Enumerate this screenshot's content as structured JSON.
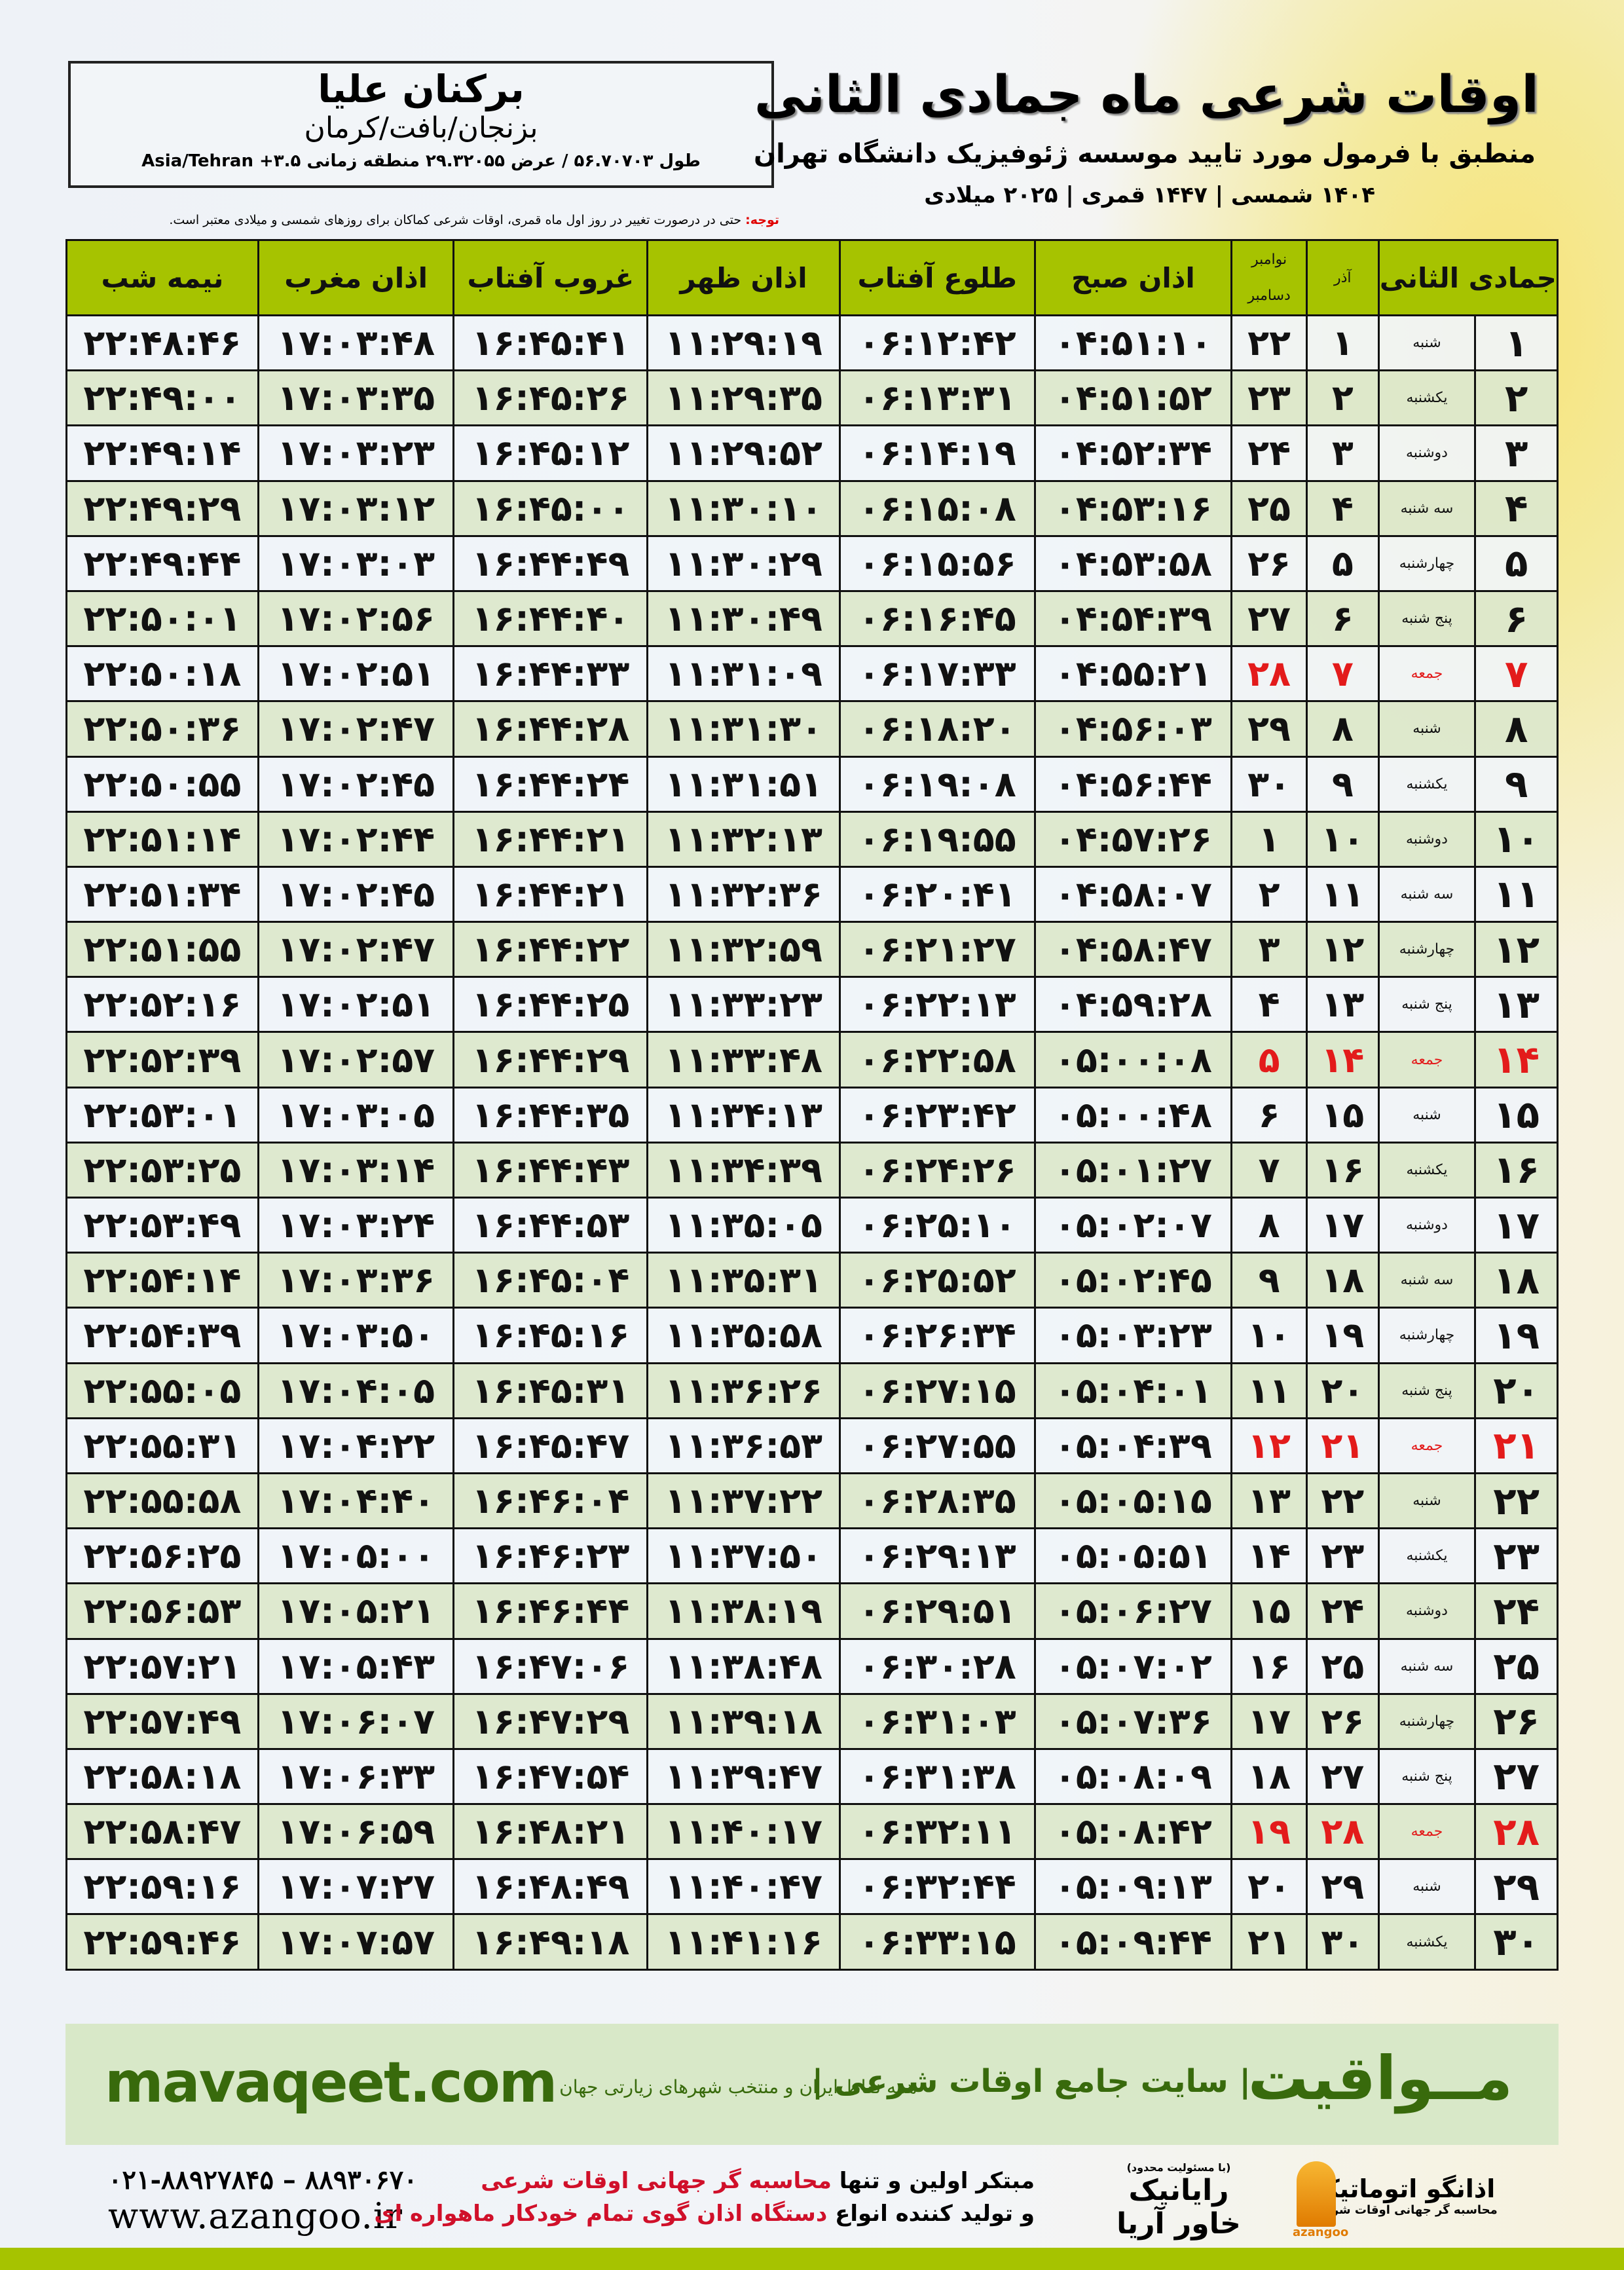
{
  "header": {
    "city": "برکنان علیا",
    "region": "بزنجان/بافت/کرمان",
    "coords": "طول ۵۶.۷۰۷۰۳ / عرض ۲۹.۳۲۰۵۵ منطقه زمانی ۳.۵+ Asia/Tehran",
    "title": "اوقات شرعی ماه جمادی الثانی",
    "subtitle": "منطبق با فرمول مورد تایید موسسه ژئوفیزیک دانشگاه تهران",
    "dates": "۱۴۰۴ شمسی | ۱۴۴۷ قمری | ۲۰۲۵ میلادی",
    "note_label": "توجه:",
    "note": " حتی در درصورت تغییر در روز اول ماه قمری، اوقات شرعی کماکان برای روزهای شمسی و میلادی معتبر است."
  },
  "table": {
    "columns": [
      "جمادی الثانی",
      "آذر",
      "نوامبر",
      "دسامبر",
      "اذان صبح",
      "طلوع آفتاب",
      "اذان ظهر",
      "غروب آفتاب",
      "اذان مغرب",
      "نیمه شب"
    ],
    "holiday_color": "#e31b1b",
    "rows": [
      [
        "۱",
        "شنبه",
        "۱",
        "۲۲",
        "۰۴:۵۱:۱۰",
        "۰۶:۱۲:۴۲",
        "۱۱:۲۹:۱۹",
        "۱۶:۴۵:۴۱",
        "۱۷:۰۳:۴۸",
        "۲۲:۴۸:۴۶"
      ],
      [
        "۲",
        "یکشنبه",
        "۲",
        "۲۳",
        "۰۴:۵۱:۵۲",
        "۰۶:۱۳:۳۱",
        "۱۱:۲۹:۳۵",
        "۱۶:۴۵:۲۶",
        "۱۷:۰۳:۳۵",
        "۲۲:۴۹:۰۰"
      ],
      [
        "۳",
        "دوشنبه",
        "۳",
        "۲۴",
        "۰۴:۵۲:۳۴",
        "۰۶:۱۴:۱۹",
        "۱۱:۲۹:۵۲",
        "۱۶:۴۵:۱۲",
        "۱۷:۰۳:۲۳",
        "۲۲:۴۹:۱۴"
      ],
      [
        "۴",
        "سه شنبه",
        "۴",
        "۲۵",
        "۰۴:۵۳:۱۶",
        "۰۶:۱۵:۰۸",
        "۱۱:۳۰:۱۰",
        "۱۶:۴۵:۰۰",
        "۱۷:۰۳:۱۲",
        "۲۲:۴۹:۲۹"
      ],
      [
        "۵",
        "چهارشنبه",
        "۵",
        "۲۶",
        "۰۴:۵۳:۵۸",
        "۰۶:۱۵:۵۶",
        "۱۱:۳۰:۲۹",
        "۱۶:۴۴:۴۹",
        "۱۷:۰۳:۰۳",
        "۲۲:۴۹:۴۴"
      ],
      [
        "۶",
        "پنج شنبه",
        "۶",
        "۲۷",
        "۰۴:۵۴:۳۹",
        "۰۶:۱۶:۴۵",
        "۱۱:۳۰:۴۹",
        "۱۶:۴۴:۴۰",
        "۱۷:۰۲:۵۶",
        "۲۲:۵۰:۰۱"
      ],
      [
        "۷",
        "جمعه",
        "۷",
        "۲۸",
        "۰۴:۵۵:۲۱",
        "۰۶:۱۷:۳۳",
        "۱۱:۳۱:۰۹",
        "۱۶:۴۴:۳۳",
        "۱۷:۰۲:۵۱",
        "۲۲:۵۰:۱۸"
      ],
      [
        "۸",
        "شنبه",
        "۸",
        "۲۹",
        "۰۴:۵۶:۰۳",
        "۰۶:۱۸:۲۰",
        "۱۱:۳۱:۳۰",
        "۱۶:۴۴:۲۸",
        "۱۷:۰۲:۴۷",
        "۲۲:۵۰:۳۶"
      ],
      [
        "۹",
        "یکشنبه",
        "۹",
        "۳۰",
        "۰۴:۵۶:۴۴",
        "۰۶:۱۹:۰۸",
        "۱۱:۳۱:۵۱",
        "۱۶:۴۴:۲۴",
        "۱۷:۰۲:۴۵",
        "۲۲:۵۰:۵۵"
      ],
      [
        "۱۰",
        "دوشنبه",
        "۱۰",
        "۱",
        "۰۴:۵۷:۲۶",
        "۰۶:۱۹:۵۵",
        "۱۱:۳۲:۱۳",
        "۱۶:۴۴:۲۱",
        "۱۷:۰۲:۴۴",
        "۲۲:۵۱:۱۴"
      ],
      [
        "۱۱",
        "سه شنبه",
        "۱۱",
        "۲",
        "۰۴:۵۸:۰۷",
        "۰۶:۲۰:۴۱",
        "۱۱:۳۲:۳۶",
        "۱۶:۴۴:۲۱",
        "۱۷:۰۲:۴۵",
        "۲۲:۵۱:۳۴"
      ],
      [
        "۱۲",
        "چهارشنبه",
        "۱۲",
        "۳",
        "۰۴:۵۸:۴۷",
        "۰۶:۲۱:۲۷",
        "۱۱:۳۲:۵۹",
        "۱۶:۴۴:۲۲",
        "۱۷:۰۲:۴۷",
        "۲۲:۵۱:۵۵"
      ],
      [
        "۱۳",
        "پنج شنبه",
        "۱۳",
        "۴",
        "۰۴:۵۹:۲۸",
        "۰۶:۲۲:۱۳",
        "۱۱:۳۳:۲۳",
        "۱۶:۴۴:۲۵",
        "۱۷:۰۲:۵۱",
        "۲۲:۵۲:۱۶"
      ],
      [
        "۱۴",
        "جمعه",
        "۱۴",
        "۵",
        "۰۵:۰۰:۰۸",
        "۰۶:۲۲:۵۸",
        "۱۱:۳۳:۴۸",
        "۱۶:۴۴:۲۹",
        "۱۷:۰۲:۵۷",
        "۲۲:۵۲:۳۹"
      ],
      [
        "۱۵",
        "شنبه",
        "۱۵",
        "۶",
        "۰۵:۰۰:۴۸",
        "۰۶:۲۳:۴۲",
        "۱۱:۳۴:۱۳",
        "۱۶:۴۴:۳۵",
        "۱۷:۰۳:۰۵",
        "۲۲:۵۳:۰۱"
      ],
      [
        "۱۶",
        "یکشنبه",
        "۱۶",
        "۷",
        "۰۵:۰۱:۲۷",
        "۰۶:۲۴:۲۶",
        "۱۱:۳۴:۳۹",
        "۱۶:۴۴:۴۳",
        "۱۷:۰۳:۱۴",
        "۲۲:۵۳:۲۵"
      ],
      [
        "۱۷",
        "دوشنبه",
        "۱۷",
        "۸",
        "۰۵:۰۲:۰۷",
        "۰۶:۲۵:۱۰",
        "۱۱:۳۵:۰۵",
        "۱۶:۴۴:۵۳",
        "۱۷:۰۳:۲۴",
        "۲۲:۵۳:۴۹"
      ],
      [
        "۱۸",
        "سه شنبه",
        "۱۸",
        "۹",
        "۰۵:۰۲:۴۵",
        "۰۶:۲۵:۵۲",
        "۱۱:۳۵:۳۱",
        "۱۶:۴۵:۰۴",
        "۱۷:۰۳:۳۶",
        "۲۲:۵۴:۱۴"
      ],
      [
        "۱۹",
        "چهارشنبه",
        "۱۹",
        "۱۰",
        "۰۵:۰۳:۲۳",
        "۰۶:۲۶:۳۴",
        "۱۱:۳۵:۵۸",
        "۱۶:۴۵:۱۶",
        "۱۷:۰۳:۵۰",
        "۲۲:۵۴:۳۹"
      ],
      [
        "۲۰",
        "پنج شنبه",
        "۲۰",
        "۱۱",
        "۰۵:۰۴:۰۱",
        "۰۶:۲۷:۱۵",
        "۱۱:۳۶:۲۶",
        "۱۶:۴۵:۳۱",
        "۱۷:۰۴:۰۵",
        "۲۲:۵۵:۰۵"
      ],
      [
        "۲۱",
        "جمعه",
        "۲۱",
        "۱۲",
        "۰۵:۰۴:۳۹",
        "۰۶:۲۷:۵۵",
        "۱۱:۳۶:۵۳",
        "۱۶:۴۵:۴۷",
        "۱۷:۰۴:۲۲",
        "۲۲:۵۵:۳۱"
      ],
      [
        "۲۲",
        "شنبه",
        "۲۲",
        "۱۳",
        "۰۵:۰۵:۱۵",
        "۰۶:۲۸:۳۵",
        "۱۱:۳۷:۲۲",
        "۱۶:۴۶:۰۴",
        "۱۷:۰۴:۴۰",
        "۲۲:۵۵:۵۸"
      ],
      [
        "۲۳",
        "یکشنبه",
        "۲۳",
        "۱۴",
        "۰۵:۰۵:۵۱",
        "۰۶:۲۹:۱۳",
        "۱۱:۳۷:۵۰",
        "۱۶:۴۶:۲۳",
        "۱۷:۰۵:۰۰",
        "۲۲:۵۶:۲۵"
      ],
      [
        "۲۴",
        "دوشنبه",
        "۲۴",
        "۱۵",
        "۰۵:۰۶:۲۷",
        "۰۶:۲۹:۵۱",
        "۱۱:۳۸:۱۹",
        "۱۶:۴۶:۴۴",
        "۱۷:۰۵:۲۱",
        "۲۲:۵۶:۵۳"
      ],
      [
        "۲۵",
        "سه شنبه",
        "۲۵",
        "۱۶",
        "۰۵:۰۷:۰۲",
        "۰۶:۳۰:۲۸",
        "۱۱:۳۸:۴۸",
        "۱۶:۴۷:۰۶",
        "۱۷:۰۵:۴۳",
        "۲۲:۵۷:۲۱"
      ],
      [
        "۲۶",
        "چهارشنبه",
        "۲۶",
        "۱۷",
        "۰۵:۰۷:۳۶",
        "۰۶:۳۱:۰۳",
        "۱۱:۳۹:۱۸",
        "۱۶:۴۷:۲۹",
        "۱۷:۰۶:۰۷",
        "۲۲:۵۷:۴۹"
      ],
      [
        "۲۷",
        "پنج شنبه",
        "۲۷",
        "۱۸",
        "۰۵:۰۸:۰۹",
        "۰۶:۳۱:۳۸",
        "۱۱:۳۹:۴۷",
        "۱۶:۴۷:۵۴",
        "۱۷:۰۶:۳۳",
        "۲۲:۵۸:۱۸"
      ],
      [
        "۲۸",
        "جمعه",
        "۲۸",
        "۱۹",
        "۰۵:۰۸:۴۲",
        "۰۶:۳۲:۱۱",
        "۱۱:۴۰:۱۷",
        "۱۶:۴۸:۲۱",
        "۱۷:۰۶:۵۹",
        "۲۲:۵۸:۴۷"
      ],
      [
        "۲۹",
        "شنبه",
        "۲۹",
        "۲۰",
        "۰۵:۰۹:۱۳",
        "۰۶:۳۲:۴۴",
        "۱۱:۴۰:۴۷",
        "۱۶:۴۸:۴۹",
        "۱۷:۰۷:۲۷",
        "۲۲:۵۹:۱۶"
      ],
      [
        "۳۰",
        "یکشنبه",
        "۳۰",
        "۲۱",
        "۰۵:۰۹:۴۴",
        "۰۶:۳۳:۱۵",
        "۱۱:۴۱:۱۶",
        "۱۶:۴۹:۱۸",
        "۱۷:۰۷:۵۷",
        "۲۲:۵۹:۴۶"
      ]
    ]
  },
  "footer": {
    "brand": "مــواقیت",
    "tagline": "| سایت جامع اوقات شرعی |",
    "tagline2": "همه نقاط ایران و منتخب شهرهای زیارتی جهان",
    "site": "mavaqeet.com",
    "phone": "۰۲۱-۸۸۹۲۷۸۴۵ – ۸۸۹۳۰۶۷۰",
    "web": "www.azangoo.ir",
    "promo1_a": "مبتکر اولین و تنها ",
    "promo1_b": "محاسبه گر جهانی اوقات شرعی",
    "promo2_a": "و تولید کننده انواع ",
    "promo2_b": "دستگاه اذان گوی تمام خودکار ماهواره ای",
    "logo1_small": "(با مسئولیت محدود)",
    "logo1": "رایانیک خاور آریا",
    "logo2": "اذانگو اتوماتیک",
    "logo2_sub": "محاسبه گر جهانی اوقات شرعی",
    "logo2_latin": "azangoo",
    "accent": "#a6c300",
    "brand_green": "#386a0c"
  }
}
